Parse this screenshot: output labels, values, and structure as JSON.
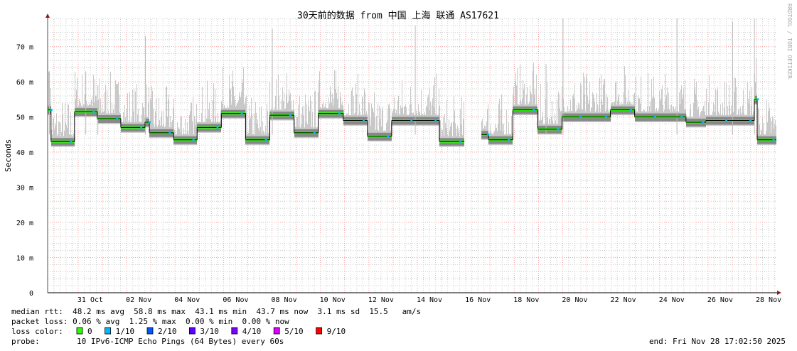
{
  "chart_data": {
    "type": "line",
    "title": "30天前的数据 from 中国 上海 联通 AS17621",
    "ylabel": "Seconds",
    "ylim": [
      0,
      78
    ],
    "y_ticks": [
      {
        "v": 0,
        "label": "0"
      },
      {
        "v": 10,
        "label": "10 m"
      },
      {
        "v": 20,
        "label": "20 m"
      },
      {
        "v": 30,
        "label": "30 m"
      },
      {
        "v": 40,
        "label": "40 m"
      },
      {
        "v": 50,
        "label": "50 m"
      },
      {
        "v": 60,
        "label": "60 m"
      },
      {
        "v": 70,
        "label": "70 m"
      }
    ],
    "x_unit": "days since 31 Oct 00:00",
    "xlim": [
      -1.26,
      28.85
    ],
    "x_ticks": [
      {
        "v": 0.5,
        "label": "31 Oct"
      },
      {
        "v": 2.5,
        "label": "02 Nov"
      },
      {
        "v": 4.5,
        "label": "04 Nov"
      },
      {
        "v": 6.5,
        "label": "06 Nov"
      },
      {
        "v": 8.5,
        "label": "08 Nov"
      },
      {
        "v": 10.5,
        "label": "10 Nov"
      },
      {
        "v": 12.5,
        "label": "12 Nov"
      },
      {
        "v": 14.5,
        "label": "14 Nov"
      },
      {
        "v": 16.5,
        "label": "16 Nov"
      },
      {
        "v": 18.5,
        "label": "18 Nov"
      },
      {
        "v": 20.5,
        "label": "20 Nov"
      },
      {
        "v": 22.5,
        "label": "22 Nov"
      },
      {
        "v": 24.5,
        "label": "24 Nov"
      },
      {
        "v": 26.5,
        "label": "26 Nov"
      },
      {
        "v": 28.5,
        "label": "28 Nov"
      }
    ],
    "series": [
      {
        "name": "median rtt (ms)",
        "segments": [
          [
            -1.26,
            -1.12,
            52
          ],
          [
            -1.12,
            -0.15,
            43
          ],
          [
            -0.15,
            0.79,
            51.5
          ],
          [
            0.79,
            1.76,
            49.5
          ],
          [
            1.76,
            2.76,
            47
          ],
          [
            2.76,
            2.94,
            48.5
          ],
          [
            2.94,
            3.94,
            45.5
          ],
          [
            3.94,
            4.91,
            43.5
          ],
          [
            4.91,
            5.91,
            47
          ],
          [
            5.91,
            6.91,
            51
          ],
          [
            6.91,
            7.91,
            43.5
          ],
          [
            7.91,
            8.91,
            50.5
          ],
          [
            8.91,
            9.91,
            45.5
          ],
          [
            9.91,
            10.94,
            51
          ],
          [
            10.94,
            11.94,
            49
          ],
          [
            11.94,
            12.94,
            44.5
          ],
          [
            12.94,
            13.91,
            49
          ],
          [
            13.91,
            14.91,
            49
          ],
          [
            14.91,
            15.94,
            43
          ],
          [
            16.65,
            16.94,
            45
          ],
          [
            16.94,
            17.94,
            43.5
          ],
          [
            17.94,
            18.97,
            52
          ],
          [
            18.97,
            19.97,
            46.5
          ],
          [
            19.97,
            20.88,
            50
          ],
          [
            20.88,
            21.97,
            50
          ],
          [
            21.97,
            22.97,
            52
          ],
          [
            22.97,
            23.97,
            50
          ],
          [
            23.97,
            25.09,
            50
          ],
          [
            25.09,
            25.91,
            48.5
          ],
          [
            25.91,
            26.91,
            49
          ],
          [
            26.91,
            27.91,
            49
          ],
          [
            27.91,
            28.03,
            55
          ],
          [
            28.03,
            28.82,
            43.5
          ]
        ]
      }
    ],
    "spikes_ms": [
      [
        -1.2,
        63
      ],
      [
        0.3,
        63
      ],
      [
        0.8,
        59
      ],
      [
        2.76,
        73
      ],
      [
        8.0,
        75
      ],
      [
        13.9,
        76
      ],
      [
        19.3,
        65
      ],
      [
        20.0,
        78
      ],
      [
        24.7,
        78
      ],
      [
        27.0,
        77
      ],
      [
        27.9,
        78
      ]
    ]
  },
  "legend": {
    "rows": [
      "median rtt:  48.2 ms avg  58.8 ms max  43.1 ms min  43.7 ms now  3.1 ms sd  15.5   am/s",
      "packet loss: 0.06 % avg  1.25 % max  0.00 % min  0.00 % now"
    ],
    "loss_label": "loss color:",
    "loss_colors": [
      {
        "label": "0",
        "color": "#26ff00"
      },
      {
        "label": "1/10",
        "color": "#00b8ff"
      },
      {
        "label": "2/10",
        "color": "#0059ff"
      },
      {
        "label": "3/10",
        "color": "#5e00ff"
      },
      {
        "label": "4/10",
        "color": "#7e00ff"
      },
      {
        "label": "5/10",
        "color": "#dd00ff"
      },
      {
        "label": "9/10",
        "color": "#ff0000"
      }
    ],
    "probe_label": "probe:",
    "probe": "10 IPv6-ICMP Echo Pings (64 Bytes) every 60s",
    "end": "end: Fri Nov 28 17:02:50 2025"
  },
  "watermark": "RRDTOOL / TOBI OETIKER"
}
